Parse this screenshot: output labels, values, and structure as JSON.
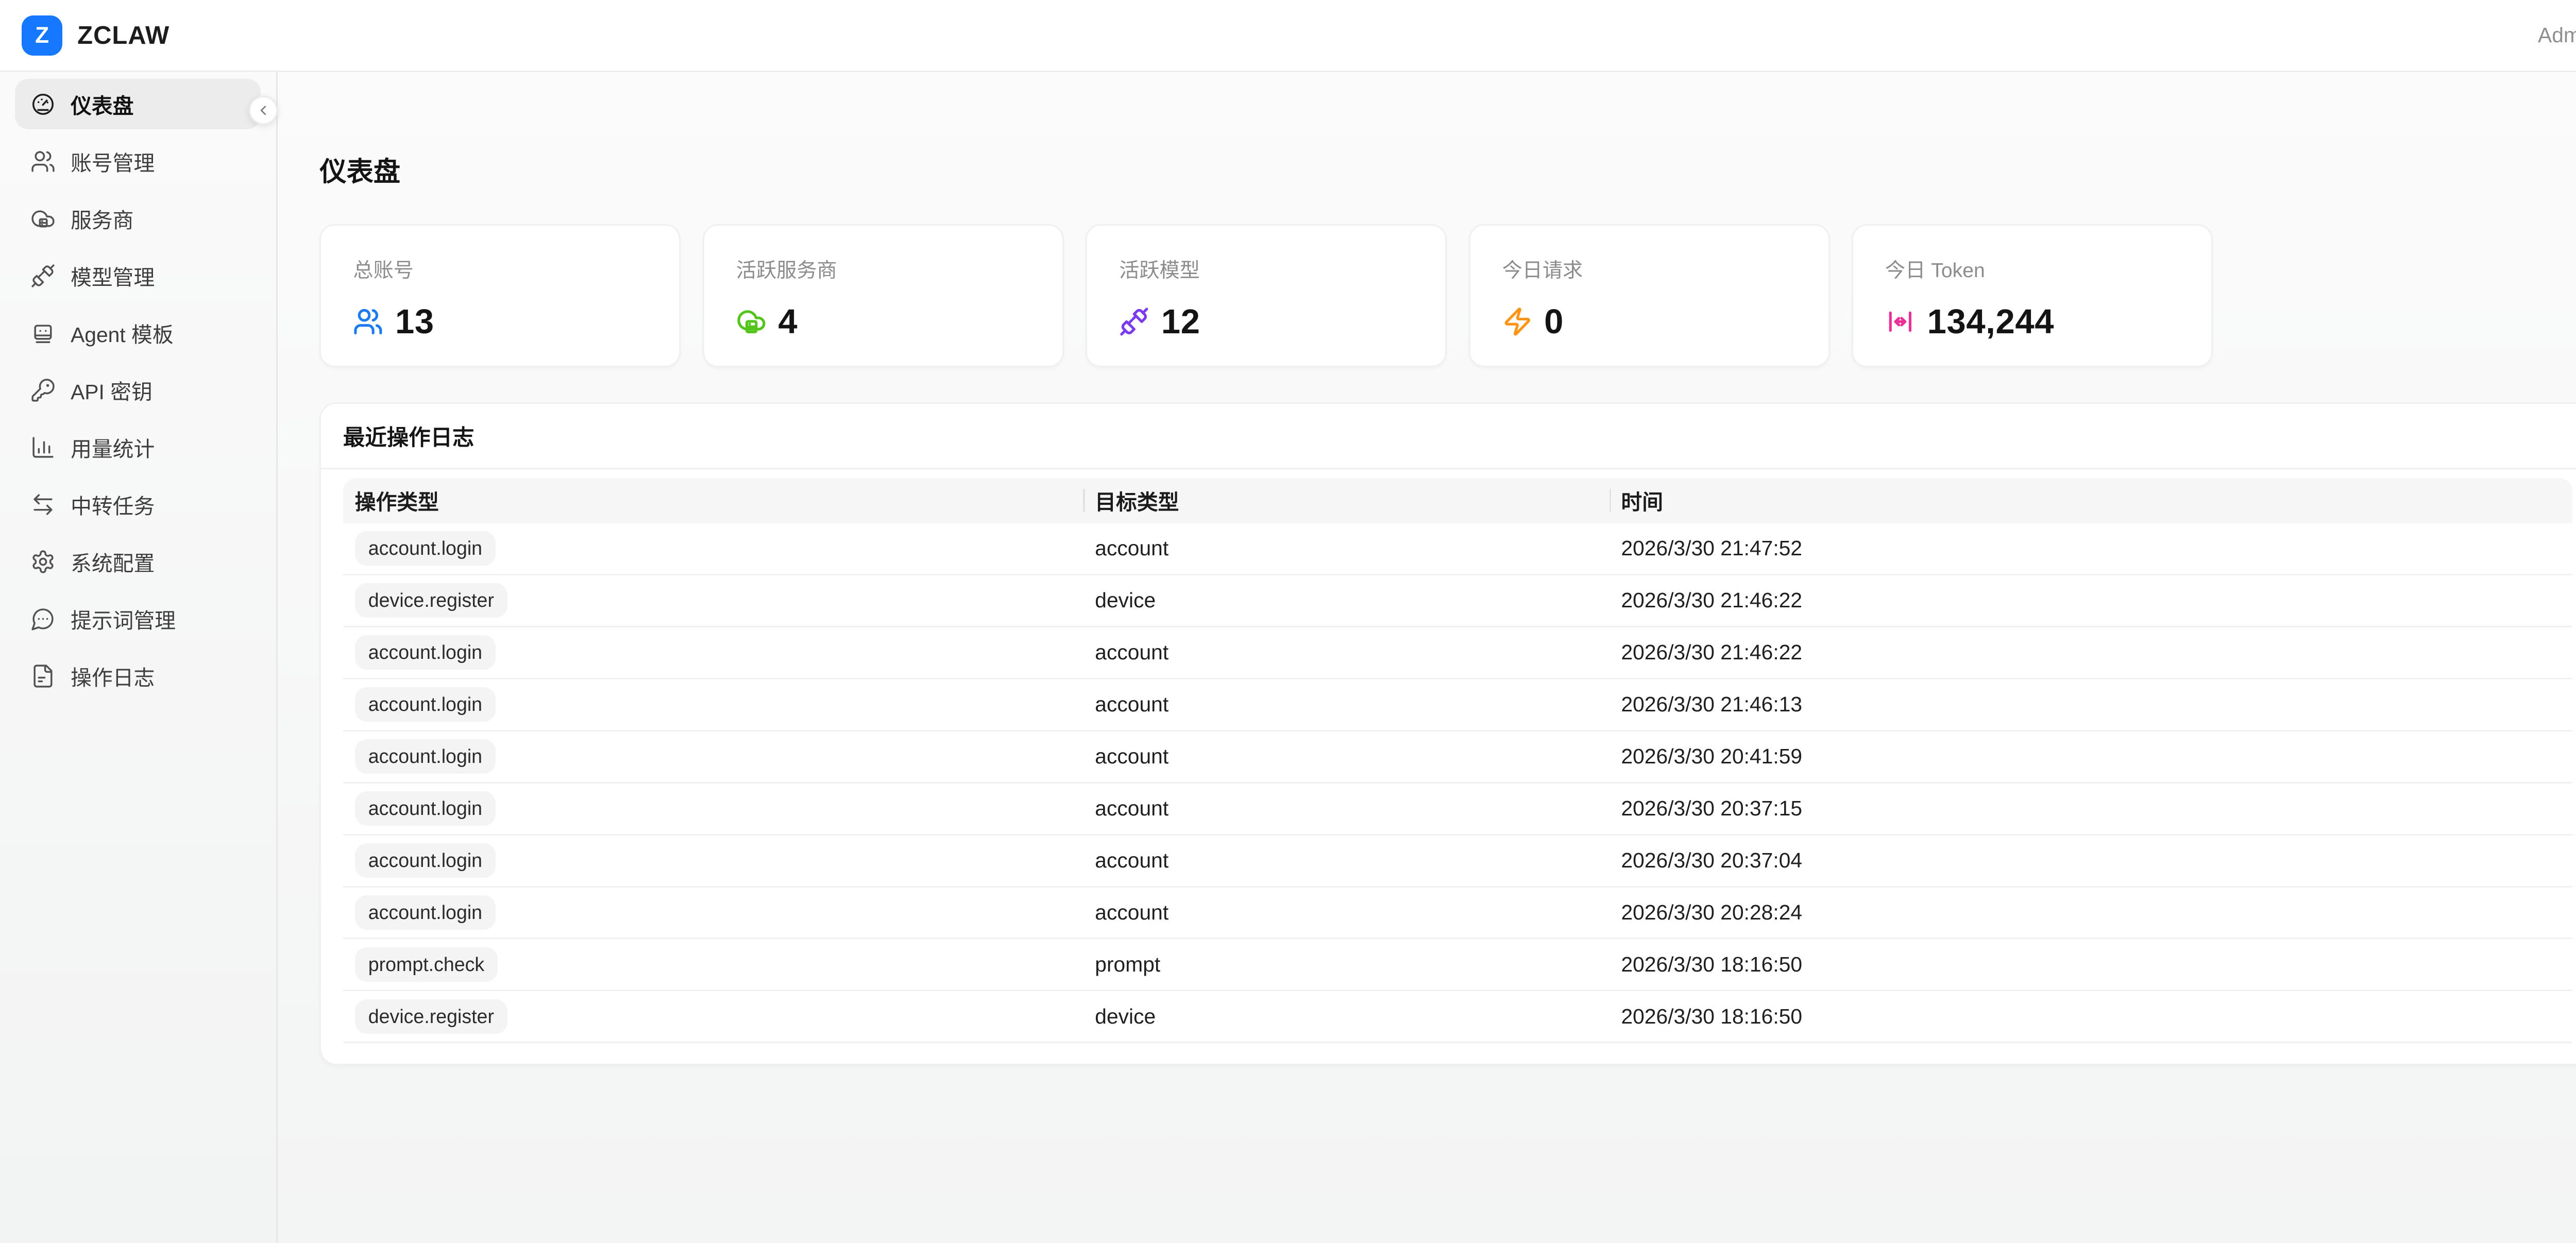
{
  "header": {
    "logo_letter": "Z",
    "brand": "ZCLAW",
    "user": "Admin"
  },
  "sidebar": {
    "items": [
      {
        "key": "dashboard",
        "label": "仪表盘",
        "icon": "gauge",
        "active": true
      },
      {
        "key": "accounts",
        "label": "账号管理",
        "icon": "users",
        "active": false
      },
      {
        "key": "providers",
        "label": "服务商",
        "icon": "cloud",
        "active": false
      },
      {
        "key": "models",
        "label": "模型管理",
        "icon": "plug",
        "active": false
      },
      {
        "key": "agent-templates",
        "label": "Agent 模板",
        "icon": "bot",
        "active": false
      },
      {
        "key": "api-keys",
        "label": "API 密钥",
        "icon": "key",
        "active": false
      },
      {
        "key": "usage-stats",
        "label": "用量统计",
        "icon": "bar-chart",
        "active": false
      },
      {
        "key": "relay-tasks",
        "label": "中转任务",
        "icon": "arrows-swap",
        "active": false
      },
      {
        "key": "system-config",
        "label": "系统配置",
        "icon": "gear",
        "active": false
      },
      {
        "key": "prompts",
        "label": "提示词管理",
        "icon": "message-dots",
        "active": false
      },
      {
        "key": "op-logs",
        "label": "操作日志",
        "icon": "file-log",
        "active": false
      }
    ]
  },
  "page": {
    "title": "仪表盘"
  },
  "stats": [
    {
      "key": "total-accounts",
      "label": "总账号",
      "value": "13",
      "icon": "users",
      "color": "#1d7bf0"
    },
    {
      "key": "active-providers",
      "label": "活跃服务商",
      "value": "4",
      "icon": "cloud-server",
      "color": "#52c41a"
    },
    {
      "key": "active-models",
      "label": "活跃模型",
      "value": "12",
      "icon": "plug",
      "color": "#7c3aed"
    },
    {
      "key": "today-requests",
      "label": "今日请求",
      "value": "0",
      "icon": "zap",
      "color": "#ff9416"
    },
    {
      "key": "today-tokens",
      "label": "今日 Token",
      "value": "134,244",
      "icon": "token-width",
      "color": "#eb2f96"
    }
  ],
  "log_table": {
    "title": "最近操作日志",
    "columns": [
      "操作类型",
      "目标类型",
      "时间"
    ],
    "rows": [
      {
        "action": "account.login",
        "target": "account",
        "time": "2026/3/30 21:47:52"
      },
      {
        "action": "device.register",
        "target": "device",
        "time": "2026/3/30 21:46:22"
      },
      {
        "action": "account.login",
        "target": "account",
        "time": "2026/3/30 21:46:22"
      },
      {
        "action": "account.login",
        "target": "account",
        "time": "2026/3/30 21:46:13"
      },
      {
        "action": "account.login",
        "target": "account",
        "time": "2026/3/30 20:41:59"
      },
      {
        "action": "account.login",
        "target": "account",
        "time": "2026/3/30 20:37:15"
      },
      {
        "action": "account.login",
        "target": "account",
        "time": "2026/3/30 20:37:04"
      },
      {
        "action": "account.login",
        "target": "account",
        "time": "2026/3/30 20:28:24"
      },
      {
        "action": "prompt.check",
        "target": "prompt",
        "time": "2026/3/30 18:16:50"
      },
      {
        "action": "device.register",
        "target": "device",
        "time": "2026/3/30 18:16:50"
      }
    ]
  }
}
